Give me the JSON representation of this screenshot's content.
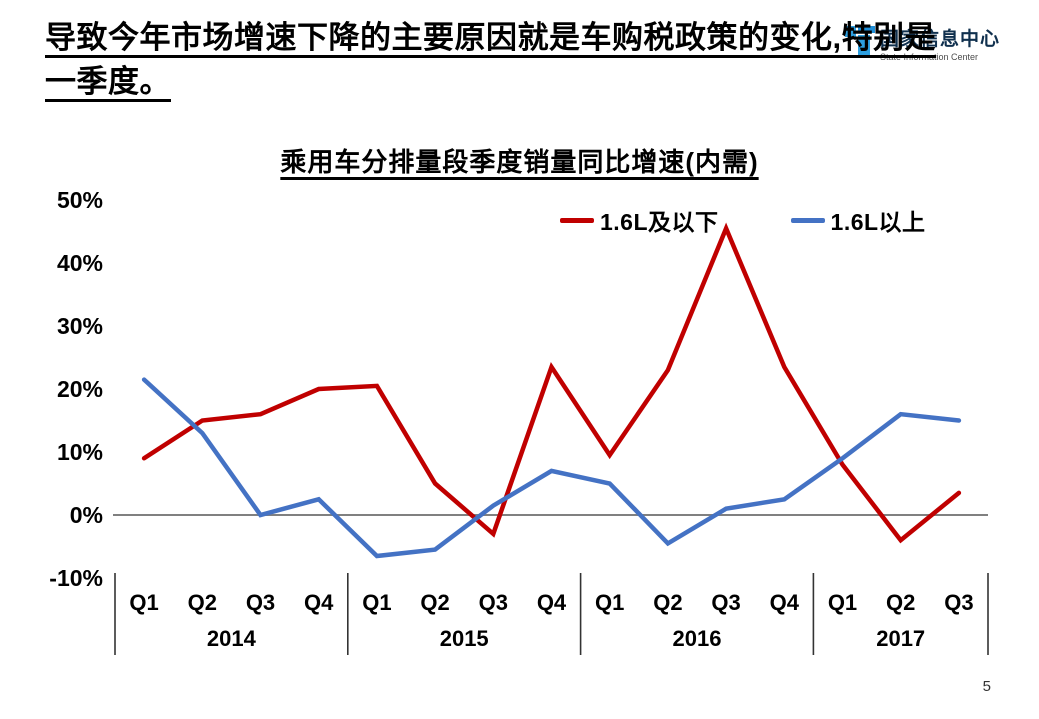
{
  "slide": {
    "title_line1": "导致今年市场增速下降的主要原因就是车购税政策的变化,特别是",
    "title_line2": "一季度。",
    "page_number": "5"
  },
  "logo": {
    "name_cn": "国家信息中心",
    "name_en": "State Information Center",
    "accent_color": "#2d9fe0"
  },
  "chart_data": {
    "type": "line",
    "title": "乘用车分排量段季度销量同比增速(内需)",
    "ylim": [
      -10,
      50
    ],
    "ytick_values": [
      50,
      40,
      30,
      20,
      10,
      0,
      -10
    ],
    "ytick_labels": [
      "50%",
      "40%",
      "30%",
      "20%",
      "10%",
      "0%",
      "-10%"
    ],
    "groups": [
      {
        "year": "2014",
        "quarters": [
          "Q1",
          "Q2",
          "Q3",
          "Q4"
        ]
      },
      {
        "year": "2015",
        "quarters": [
          "Q1",
          "Q2",
          "Q3",
          "Q4"
        ]
      },
      {
        "year": "2016",
        "quarters": [
          "Q1",
          "Q2",
          "Q3",
          "Q4"
        ]
      },
      {
        "year": "2017",
        "quarters": [
          "Q1",
          "Q2",
          "Q3"
        ]
      }
    ],
    "series": [
      {
        "name": "1.6L及以下",
        "color": "#C00000",
        "values": [
          9,
          15,
          16,
          20,
          20.5,
          5,
          -3,
          23.5,
          9.5,
          23,
          45.5,
          23.5,
          8,
          -4,
          3.5
        ]
      },
      {
        "name": "1.6L以上",
        "color": "#4472C4",
        "values": [
          21.5,
          13,
          0,
          2.5,
          -6.5,
          -5.5,
          1.5,
          7,
          5,
          -4.5,
          1,
          2.5,
          9,
          16,
          15
        ]
      }
    ],
    "legend_position": "top",
    "grid": false,
    "zero_line": true,
    "zero_line_color": "#808080",
    "axis_separator_color": "#333333"
  }
}
